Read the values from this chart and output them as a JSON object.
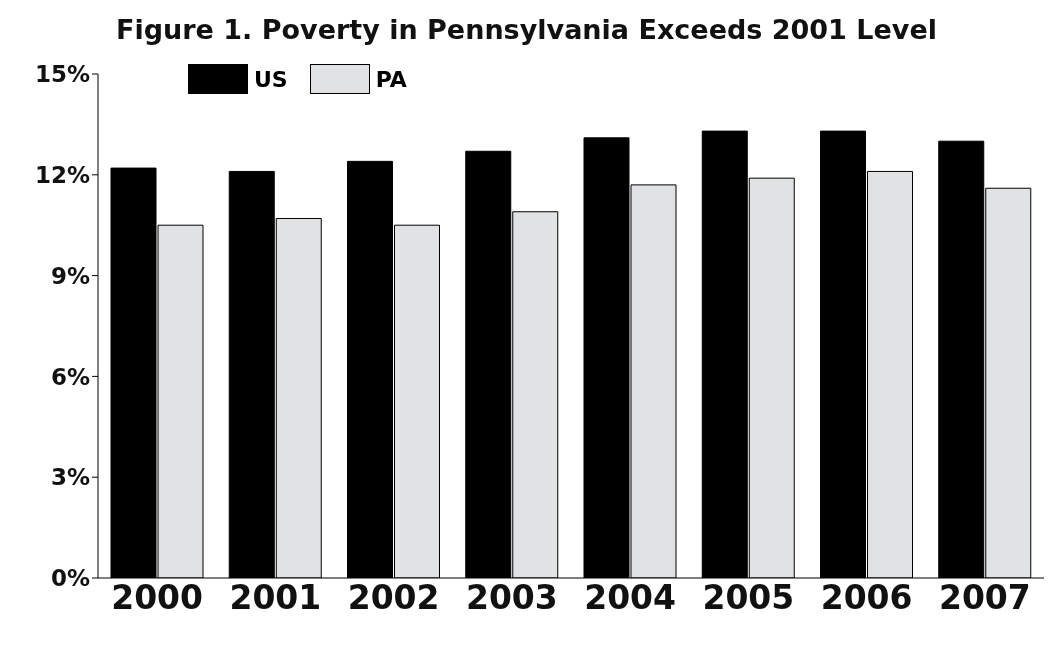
{
  "chart_data": {
    "type": "bar",
    "title": "Figure 1. Poverty in Pennsylvania Exceeds 2001 Level",
    "categories": [
      "2000",
      "2001",
      "2002",
      "2003",
      "2004",
      "2005",
      "2006",
      "2007"
    ],
    "series": [
      {
        "name": "US",
        "color": "#000000",
        "values": [
          12.2,
          12.1,
          12.4,
          12.7,
          13.1,
          13.3,
          13.3,
          13.0
        ]
      },
      {
        "name": "PA",
        "color": "#e1e2e4",
        "values": [
          10.5,
          10.7,
          10.5,
          10.9,
          11.7,
          11.9,
          12.1,
          11.6
        ]
      }
    ],
    "ylim": [
      0,
      15
    ],
    "yticks": [
      {
        "value": 0,
        "label": "0%"
      },
      {
        "value": 3,
        "label": "3%"
      },
      {
        "value": 6,
        "label": "6%"
      },
      {
        "value": 9,
        "label": "9%"
      },
      {
        "value": 12,
        "label": "12%"
      },
      {
        "value": 15,
        "label": "15%"
      }
    ],
    "grid": false,
    "legend": "top left"
  }
}
